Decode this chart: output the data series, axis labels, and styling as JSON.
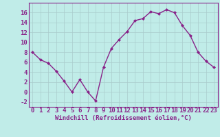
{
  "x": [
    0,
    1,
    2,
    3,
    4,
    5,
    6,
    7,
    8,
    9,
    10,
    11,
    12,
    13,
    14,
    15,
    16,
    17,
    18,
    19,
    20,
    21,
    22,
    23
  ],
  "y": [
    8,
    6.5,
    5.8,
    4.2,
    2.2,
    0,
    2.5,
    0,
    -1.8,
    5,
    8.8,
    10.6,
    12.2,
    14.4,
    14.8,
    16.2,
    15.8,
    16.6,
    16.0,
    13.4,
    11.4,
    8.0,
    6.2,
    5.0
  ],
  "line_color": "#882288",
  "marker": "D",
  "marker_size": 2.0,
  "bg_color": "#c0ece8",
  "grid_color": "#aacccc",
  "xlabel": "Windchill (Refroidissement éolien,°C)",
  "xlabel_fontsize": 6.5,
  "xtick_labels": [
    "0",
    "1",
    "2",
    "3",
    "4",
    "5",
    "6",
    "7",
    "8",
    "9",
    "10",
    "11",
    "12",
    "13",
    "14",
    "15",
    "16",
    "17",
    "18",
    "19",
    "20",
    "21",
    "22",
    "23"
  ],
  "ylim": [
    -3,
    18
  ],
  "yticks": [
    -2,
    0,
    2,
    4,
    6,
    8,
    10,
    12,
    14,
    16
  ],
  "tick_fontsize": 6.5,
  "line_width": 1.0
}
